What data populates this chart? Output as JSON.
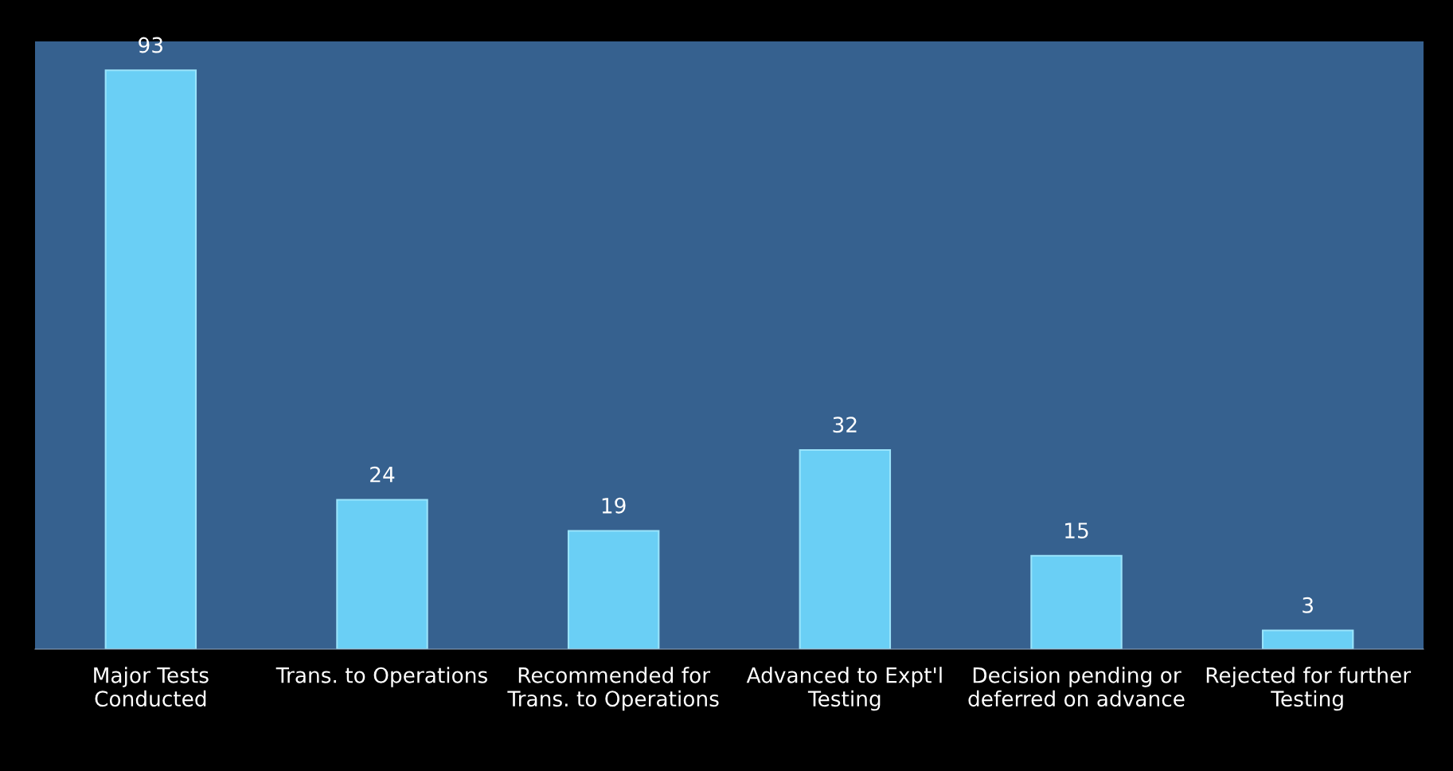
{
  "chart_data": {
    "type": "bar",
    "categories": [
      "Major Tests\nConducted",
      "Trans. to Operations",
      "Recommended for\nTrans. to Operations",
      "Advanced to Expt'l\nTesting",
      "Decision pending or\ndeferred on advance",
      "Rejected for further\nTesting"
    ],
    "values": [
      93,
      24,
      19,
      32,
      15,
      3
    ],
    "color": "#6acff5",
    "data_labels": true,
    "grid": false,
    "legend": false
  }
}
